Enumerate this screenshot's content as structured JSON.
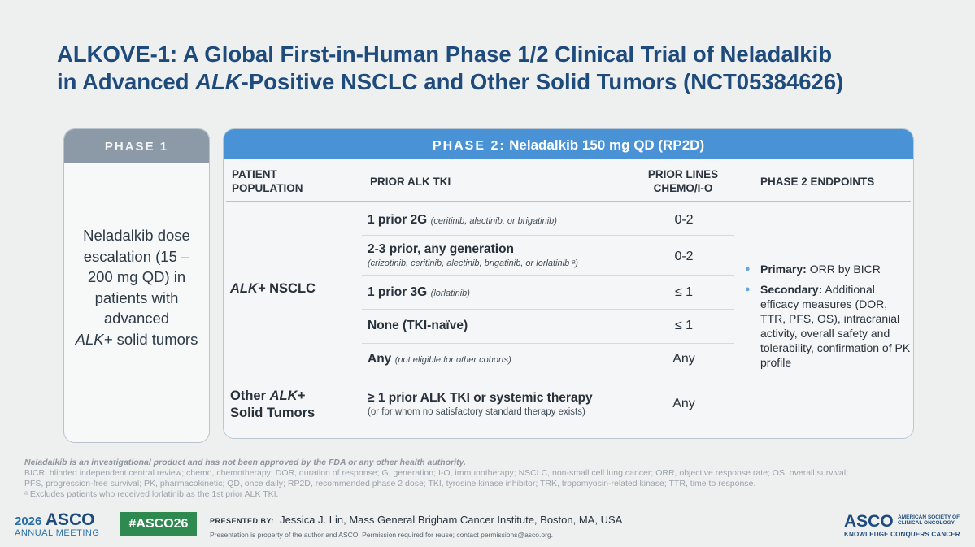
{
  "title": {
    "line1": "ALKOVE-1: A Global First-in-Human Phase 1/2 Clinical Trial of Neladalkib",
    "line2_pre": "in Advanced ",
    "line2_em": "ALK",
    "line2_post": "-Positive NSCLC and Other Solid Tumors (NCT05384626)"
  },
  "phase1": {
    "header": "PHASE 1",
    "body_pre": "Neladalkib dose escalation (15 – 200 mg QD) in patients with advanced ",
    "body_em": "ALK+",
    "body_post": " solid tumors"
  },
  "phase2": {
    "header_label": "PHASE 2:",
    "header_drug": "Neladalkib 150 mg QD (RP2D)",
    "columns": {
      "population": "PATIENT POPULATION",
      "prior_tki": "PRIOR ALK TKI",
      "prior_lines": "PRIOR LINES CHEMO/I-O",
      "endpoints": "PHASE 2 ENDPOINTS"
    },
    "pop_nsclc_em": "ALK+",
    "pop_nsclc": " NSCLC",
    "pop_other_pre": "Other ",
    "pop_other_em": "ALK+",
    "pop_other_post": "Solid Tumors",
    "rows": [
      {
        "main": "1 prior 2G",
        "note": "(ceritinib, alectinib, or brigatinib)",
        "lines": "0-2"
      },
      {
        "main": "2-3 prior, any generation",
        "note": "(crizotinib, ceritinib, alectinib, brigatinib, or lorlatinib ᵃ)",
        "lines": "0-2"
      },
      {
        "main": "1 prior 3G",
        "note": "(lorlatinib)",
        "lines": "≤ 1"
      },
      {
        "main": "None (TKI-naïve)",
        "note": "",
        "lines": "≤ 1"
      },
      {
        "main": "Any",
        "note": "(not eligible for other cohorts)",
        "lines": "Any"
      },
      {
        "main": "≥ 1 prior ALK TKI or systemic therapy",
        "note": "(or for whom no satisfactory standard therapy exists)",
        "lines": "Any"
      }
    ],
    "endpoints": {
      "primary_label": "Primary:",
      "primary_text": " ORR by BICR",
      "secondary_label": "Secondary:",
      "secondary_text": " Additional efficacy measures (DOR, TTR, PFS, OS), intracranial activity, overall safety and tolerability, confirmation of PK profile"
    }
  },
  "footnotes": {
    "disclaimer": "Neladalkib is an investigational product and has not been approved by the FDA or any other health authority.",
    "abbrev1": "BICR, blinded independent central review; chemo, chemotherapy; DOR, duration of response; G, generation; I-O, immunotherapy; NSCLC, non-small cell lung cancer; ORR, objective response rate; OS, overall survival;",
    "abbrev2": "PFS, progression-free survival; PK, pharmacokinetic; QD, once daily; RP2D, recommended phase 2 dose; TKI, tyrosine kinase inhibitor; TRK, tropomyosin-related kinase; TTR, time to response.",
    "note_a": "ᵃ Excludes patients who received lorlatinib as the 1st prior ALK TKI."
  },
  "footer": {
    "year": "2026",
    "asco": "ASCO",
    "annual": "ANNUAL MEETING",
    "hashtag": "#ASCO26",
    "presented_label": "PRESENTED BY:",
    "presenter": "Jessica J. Lin, Mass General Brigham Cancer Institute, Boston, MA, USA",
    "permission": "Presentation is property of the author and ASCO. Permission required for reuse; contact permissions@asco.org.",
    "logo": "ASCO",
    "logo_sub": "AMERICAN SOCIETY OF CLINICAL ONCOLOGY",
    "tagline": "KNOWLEDGE CONQUERS CANCER"
  },
  "colors": {
    "title": "#1e4b7c",
    "phase1_header": "#8c9aa7",
    "phase2_header": "#4a92d6",
    "hashtag_bg": "#2f8a4f"
  }
}
